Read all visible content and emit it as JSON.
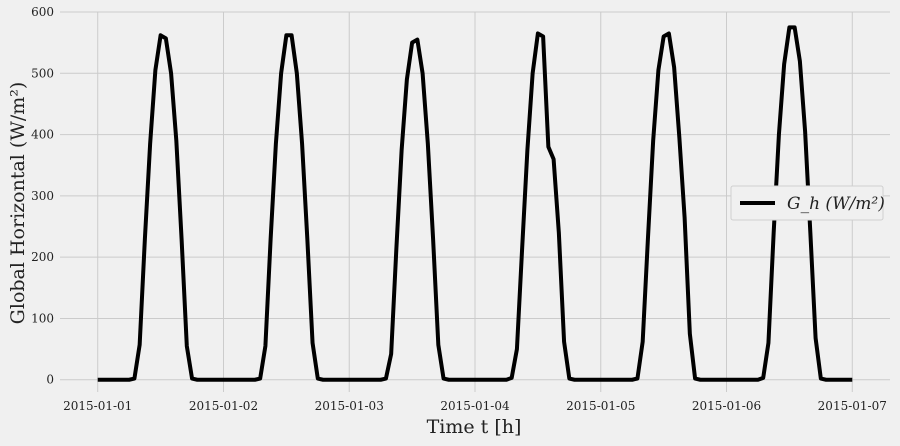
{
  "chart_data": {
    "type": "line",
    "xlabel": "Time t [h]",
    "ylabel": "Global Horizontal (W/m²)",
    "xlim": [
      "2015-01-01T00:00",
      "2015-01-07T00:00"
    ],
    "ylim": [
      0,
      600
    ],
    "grid": true,
    "legend_position": "center-right",
    "xticks": [
      "2015-01-01",
      "2015-01-02",
      "2015-01-03",
      "2015-01-04",
      "2015-01-05",
      "2015-01-06",
      "2015-01-07"
    ],
    "yticks": [
      0,
      100,
      200,
      300,
      400,
      500,
      600
    ],
    "series": [
      {
        "name": "G_h (W/m²)",
        "color": "#000000",
        "points": [
          [
            "2015-01-01T00:00",
            0
          ],
          [
            "2015-01-01T01:00",
            0
          ],
          [
            "2015-01-01T02:00",
            0
          ],
          [
            "2015-01-01T03:00",
            0
          ],
          [
            "2015-01-01T04:00",
            0
          ],
          [
            "2015-01-01T05:00",
            0
          ],
          [
            "2015-01-01T06:00",
            0
          ],
          [
            "2015-01-01T07:00",
            2
          ],
          [
            "2015-01-01T08:00",
            57
          ],
          [
            "2015-01-01T09:00",
            230
          ],
          [
            "2015-01-01T10:00",
            385
          ],
          [
            "2015-01-01T11:00",
            505
          ],
          [
            "2015-01-01T12:00",
            562
          ],
          [
            "2015-01-01T13:00",
            557
          ],
          [
            "2015-01-01T14:00",
            500
          ],
          [
            "2015-01-01T15:00",
            390
          ],
          [
            "2015-01-01T16:00",
            230
          ],
          [
            "2015-01-01T17:00",
            55
          ],
          [
            "2015-01-01T18:00",
            2
          ],
          [
            "2015-01-01T19:00",
            0
          ],
          [
            "2015-01-01T20:00",
            0
          ],
          [
            "2015-01-01T21:00",
            0
          ],
          [
            "2015-01-01T22:00",
            0
          ],
          [
            "2015-01-01T23:00",
            0
          ],
          [
            "2015-01-02T00:00",
            0
          ],
          [
            "2015-01-02T01:00",
            0
          ],
          [
            "2015-01-02T02:00",
            0
          ],
          [
            "2015-01-02T03:00",
            0
          ],
          [
            "2015-01-02T04:00",
            0
          ],
          [
            "2015-01-02T05:00",
            0
          ],
          [
            "2015-01-02T06:00",
            0
          ],
          [
            "2015-01-02T07:00",
            2
          ],
          [
            "2015-01-02T08:00",
            55
          ],
          [
            "2015-01-02T09:00",
            230
          ],
          [
            "2015-01-02T10:00",
            385
          ],
          [
            "2015-01-02T11:00",
            500
          ],
          [
            "2015-01-02T12:00",
            562
          ],
          [
            "2015-01-02T13:00",
            562
          ],
          [
            "2015-01-02T14:00",
            500
          ],
          [
            "2015-01-02T15:00",
            385
          ],
          [
            "2015-01-02T16:00",
            230
          ],
          [
            "2015-01-02T17:00",
            60
          ],
          [
            "2015-01-02T18:00",
            2
          ],
          [
            "2015-01-02T19:00",
            0
          ],
          [
            "2015-01-02T20:00",
            0
          ],
          [
            "2015-01-02T21:00",
            0
          ],
          [
            "2015-01-02T22:00",
            0
          ],
          [
            "2015-01-02T23:00",
            0
          ],
          [
            "2015-01-03T00:00",
            0
          ],
          [
            "2015-01-03T01:00",
            0
          ],
          [
            "2015-01-03T02:00",
            0
          ],
          [
            "2015-01-03T03:00",
            0
          ],
          [
            "2015-01-03T04:00",
            0
          ],
          [
            "2015-01-03T05:00",
            0
          ],
          [
            "2015-01-03T06:00",
            0
          ],
          [
            "2015-01-03T07:00",
            2
          ],
          [
            "2015-01-03T08:00",
            42
          ],
          [
            "2015-01-03T09:00",
            215
          ],
          [
            "2015-01-03T10:00",
            375
          ],
          [
            "2015-01-03T11:00",
            490
          ],
          [
            "2015-01-03T12:00",
            550
          ],
          [
            "2015-01-03T13:00",
            555
          ],
          [
            "2015-01-03T14:00",
            500
          ],
          [
            "2015-01-03T15:00",
            385
          ],
          [
            "2015-01-03T16:00",
            230
          ],
          [
            "2015-01-03T17:00",
            57
          ],
          [
            "2015-01-03T18:00",
            2
          ],
          [
            "2015-01-03T19:00",
            0
          ],
          [
            "2015-01-03T20:00",
            0
          ],
          [
            "2015-01-03T21:00",
            0
          ],
          [
            "2015-01-03T22:00",
            0
          ],
          [
            "2015-01-03T23:00",
            0
          ],
          [
            "2015-01-04T00:00",
            0
          ],
          [
            "2015-01-04T01:00",
            0
          ],
          [
            "2015-01-04T02:00",
            0
          ],
          [
            "2015-01-04T03:00",
            0
          ],
          [
            "2015-01-04T04:00",
            0
          ],
          [
            "2015-01-04T05:00",
            0
          ],
          [
            "2015-01-04T06:00",
            0
          ],
          [
            "2015-01-04T07:00",
            3
          ],
          [
            "2015-01-04T08:00",
            50
          ],
          [
            "2015-01-04T09:00",
            215
          ],
          [
            "2015-01-04T10:00",
            375
          ],
          [
            "2015-01-04T11:00",
            500
          ],
          [
            "2015-01-04T12:00",
            565
          ],
          [
            "2015-01-04T13:00",
            560
          ],
          [
            "2015-01-04T14:00",
            380
          ],
          [
            "2015-01-04T15:00",
            360
          ],
          [
            "2015-01-04T16:00",
            240
          ],
          [
            "2015-01-04T17:00",
            62
          ],
          [
            "2015-01-04T18:00",
            2
          ],
          [
            "2015-01-04T19:00",
            0
          ],
          [
            "2015-01-04T20:00",
            0
          ],
          [
            "2015-01-04T21:00",
            0
          ],
          [
            "2015-01-04T22:00",
            0
          ],
          [
            "2015-01-04T23:00",
            0
          ],
          [
            "2015-01-05T00:00",
            0
          ],
          [
            "2015-01-05T01:00",
            0
          ],
          [
            "2015-01-05T02:00",
            0
          ],
          [
            "2015-01-05T03:00",
            0
          ],
          [
            "2015-01-05T04:00",
            0
          ],
          [
            "2015-01-05T05:00",
            0
          ],
          [
            "2015-01-05T06:00",
            0
          ],
          [
            "2015-01-05T07:00",
            2
          ],
          [
            "2015-01-05T08:00",
            62
          ],
          [
            "2015-01-05T09:00",
            230
          ],
          [
            "2015-01-05T10:00",
            390
          ],
          [
            "2015-01-05T11:00",
            505
          ],
          [
            "2015-01-05T12:00",
            560
          ],
          [
            "2015-01-05T13:00",
            565
          ],
          [
            "2015-01-05T14:00",
            510
          ],
          [
            "2015-01-05T15:00",
            395
          ],
          [
            "2015-01-05T16:00",
            265
          ],
          [
            "2015-01-05T17:00",
            75
          ],
          [
            "2015-01-05T18:00",
            2
          ],
          [
            "2015-01-05T19:00",
            0
          ],
          [
            "2015-01-05T20:00",
            0
          ],
          [
            "2015-01-05T21:00",
            0
          ],
          [
            "2015-01-05T22:00",
            0
          ],
          [
            "2015-01-05T23:00",
            0
          ],
          [
            "2015-01-06T00:00",
            0
          ],
          [
            "2015-01-06T01:00",
            0
          ],
          [
            "2015-01-06T02:00",
            0
          ],
          [
            "2015-01-06T03:00",
            0
          ],
          [
            "2015-01-06T04:00",
            0
          ],
          [
            "2015-01-06T05:00",
            0
          ],
          [
            "2015-01-06T06:00",
            0
          ],
          [
            "2015-01-06T07:00",
            3
          ],
          [
            "2015-01-06T08:00",
            60
          ],
          [
            "2015-01-06T09:00",
            240
          ],
          [
            "2015-01-06T10:00",
            400
          ],
          [
            "2015-01-06T11:00",
            515
          ],
          [
            "2015-01-06T12:00",
            575
          ],
          [
            "2015-01-06T13:00",
            575
          ],
          [
            "2015-01-06T14:00",
            520
          ],
          [
            "2015-01-06T15:00",
            405
          ],
          [
            "2015-01-06T16:00",
            240
          ],
          [
            "2015-01-06T17:00",
            68
          ],
          [
            "2015-01-06T18:00",
            2
          ],
          [
            "2015-01-06T19:00",
            0
          ],
          [
            "2015-01-06T20:00",
            0
          ],
          [
            "2015-01-06T21:00",
            0
          ],
          [
            "2015-01-06T22:00",
            0
          ],
          [
            "2015-01-06T23:00",
            0
          ],
          [
            "2015-01-07T00:00",
            0
          ]
        ]
      }
    ]
  }
}
